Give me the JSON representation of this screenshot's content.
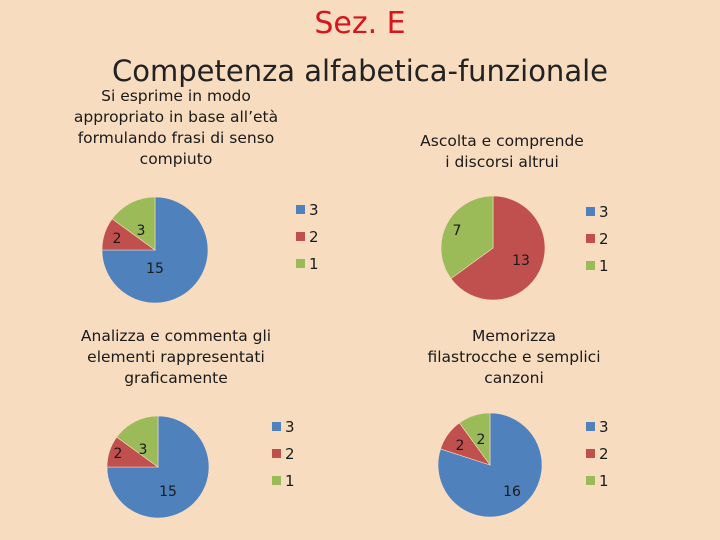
{
  "header": {
    "title": "Sez. E",
    "subtitle": "Competenza alfabetica-funzionale"
  },
  "colors": {
    "3": "#4f81bd",
    "2": "#c0504d",
    "1": "#9bbb59"
  },
  "chart_data": [
    {
      "type": "pie",
      "title": "Si esprime in modo appropriato in base all’età formulando frasi di senso compiuto",
      "slices": [
        {
          "label": "3",
          "value": 15,
          "color": "#4f81bd"
        },
        {
          "label": "2",
          "value": 2,
          "color": "#c0504d"
        },
        {
          "label": "1",
          "value": 3,
          "color": "#9bbb59"
        }
      ],
      "legend": [
        "3",
        "2",
        "1"
      ],
      "legend_position": "right"
    },
    {
      "type": "pie",
      "title": "Ascolta e comprende i discorsi altrui",
      "slices": [
        {
          "label": "3",
          "value": 0,
          "color": "#4f81bd"
        },
        {
          "label": "2",
          "value": 13,
          "color": "#c0504d"
        },
        {
          "label": "1",
          "value": 7,
          "color": "#9bbb59"
        }
      ],
      "legend": [
        "3",
        "2",
        "1"
      ],
      "legend_position": "right"
    },
    {
      "type": "pie",
      "title": "Analizza e commenta gli elementi rappresentati graficamente",
      "slices": [
        {
          "label": "3",
          "value": 15,
          "color": "#4f81bd"
        },
        {
          "label": "2",
          "value": 2,
          "color": "#c0504d"
        },
        {
          "label": "1",
          "value": 3,
          "color": "#9bbb59"
        }
      ],
      "legend": [
        "3",
        "2",
        "1"
      ],
      "legend_position": "right"
    },
    {
      "type": "pie",
      "title": "Memorizza filastrocche e semplici canzoni",
      "slices": [
        {
          "label": "3",
          "value": 16,
          "color": "#4f81bd"
        },
        {
          "label": "2",
          "value": 2,
          "color": "#c0504d"
        },
        {
          "label": "1",
          "value": 2,
          "color": "#9bbb59"
        }
      ],
      "legend": [
        "3",
        "2",
        "1"
      ],
      "legend_position": "right"
    }
  ]
}
